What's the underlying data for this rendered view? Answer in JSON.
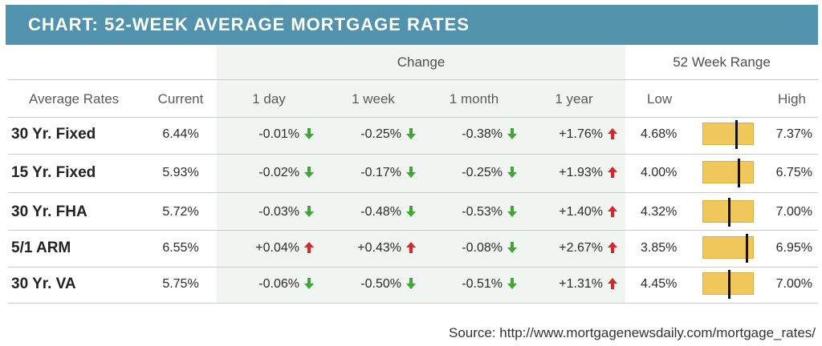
{
  "title": "CHART: 52-WEEK AVERAGE MORTGAGE RATES",
  "group_headers": {
    "change": "Change",
    "range": "52 Week Range"
  },
  "columns": {
    "average_rates": "Average Rates",
    "current": "Current",
    "day": "1 day",
    "week": "1 week",
    "month": "1 month",
    "year": "1 year",
    "low": "Low",
    "high": "High"
  },
  "chart_data": {
    "type": "table",
    "title": "CHART: 52-WEEK AVERAGE MORTGAGE RATES",
    "rows": [
      {
        "label": "30 Yr. Fixed",
        "current": "6.44%",
        "day": "-0.01%",
        "week": "-0.25%",
        "month": "-0.38%",
        "year": "+1.76%",
        "low": "4.68%",
        "high": "7.37%",
        "current_value": 6.44,
        "low_value": 4.68,
        "high_value": 7.37
      },
      {
        "label": "15 Yr. Fixed",
        "current": "5.93%",
        "day": "-0.02%",
        "week": "-0.17%",
        "month": "-0.25%",
        "year": "+1.93%",
        "low": "4.00%",
        "high": "6.75%",
        "current_value": 5.93,
        "low_value": 4.0,
        "high_value": 6.75
      },
      {
        "label": "30 Yr. FHA",
        "current": "5.72%",
        "day": "-0.03%",
        "week": "-0.48%",
        "month": "-0.53%",
        "year": "+1.40%",
        "low": "4.32%",
        "high": "7.00%",
        "current_value": 5.72,
        "low_value": 4.32,
        "high_value": 7.0
      },
      {
        "label": "5/1 ARM",
        "current": "6.55%",
        "day": "+0.04%",
        "week": "+0.43%",
        "month": "-0.08%",
        "year": "+2.67%",
        "low": "3.85%",
        "high": "6.95%",
        "current_value": 6.55,
        "low_value": 3.85,
        "high_value": 6.95
      },
      {
        "label": "30 Yr. VA",
        "current": "5.75%",
        "day": "-0.06%",
        "week": "-0.50%",
        "month": "-0.51%",
        "year": "+1.31%",
        "low": "4.45%",
        "high": "7.00%",
        "current_value": 5.75,
        "low_value": 4.45,
        "high_value": 7.0
      }
    ]
  },
  "colors": {
    "header": "#5193ac",
    "up": "#d9262b",
    "down": "#43a536",
    "range_bar": "#f0c75a",
    "change_band": "#f1f5f2"
  },
  "source": "Source: http://www.mortgagenewsdaily.com/mortgage_rates/"
}
